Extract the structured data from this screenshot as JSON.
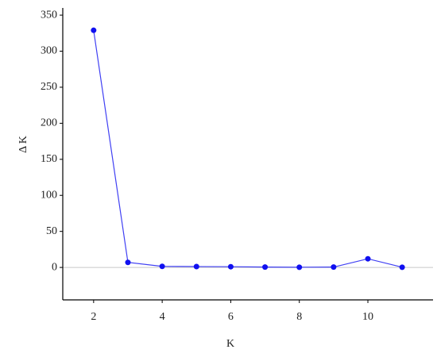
{
  "chart_data": {
    "type": "line",
    "x_label": "K",
    "y_label": "Δ K",
    "x": [
      2,
      3,
      4,
      5,
      6,
      7,
      8,
      9,
      10,
      11
    ],
    "series": [
      {
        "name": "Δ K",
        "color": "#1010f0",
        "values": [
          329,
          7,
          1.5,
          1.2,
          1,
          0.5,
          0.3,
          0.5,
          12,
          0.3
        ]
      }
    ],
    "xlim": [
      1.1,
      11.9
    ],
    "ylim": [
      -45,
      360
    ],
    "xticks": [
      2,
      4,
      6,
      8,
      10
    ],
    "yticks": [
      0,
      50,
      100,
      150,
      200,
      250,
      300,
      350
    ],
    "zero_line": true,
    "legend": false
  }
}
